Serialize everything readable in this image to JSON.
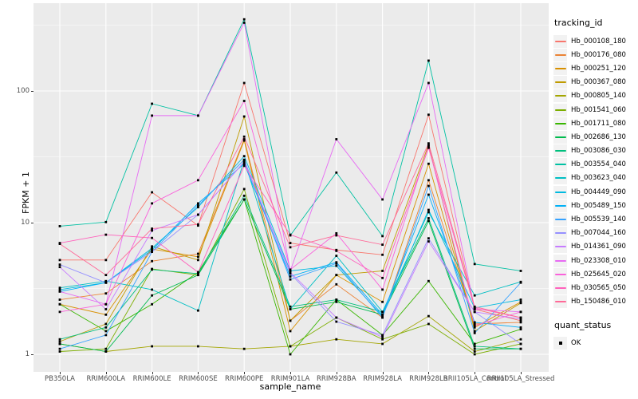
{
  "chart_data": {
    "type": "line",
    "title": "",
    "xlabel": "sample_name",
    "ylabel": "FPKM + 1",
    "x_categories": [
      "PB350LA",
      "RRIM600LA",
      "RRIM600LE",
      "RRIM600SE",
      "RRIM600PE",
      "RRIM901LA",
      "RRIM928BA",
      "RRIM928LA",
      "RRIM928LB",
      "RRII105LA_Control",
      "RRII105LA_Stressed"
    ],
    "y_scale": "log10",
    "y_ticks": [
      1,
      10,
      100
    ],
    "y_minor_gridlines": [
      3.162,
      31.623,
      316.228
    ],
    "ylim": [
      0.75,
      460
    ],
    "grid": "on",
    "legend_position": "right",
    "legend_title": "tracking_id",
    "point_legend": {
      "title": "quant_status",
      "label": "OK"
    },
    "point_shape": "filled-black-square",
    "series": [
      {
        "name": "Hb_000108_180",
        "color": "#F8766D",
        "values": [
          5.2,
          5.2,
          17,
          9.5,
          115,
          7.0,
          6.2,
          5.7,
          66,
          2.2,
          1.8
        ]
      },
      {
        "name": "Hb_000176_080",
        "color": "#EB8335",
        "values": [
          2.6,
          2.9,
          5.1,
          5.8,
          43,
          1.8,
          3.4,
          1.9,
          21,
          1.7,
          1.75
        ]
      },
      {
        "name": "Hb_000251_120",
        "color": "#D89000",
        "values": [
          2.4,
          2.0,
          6.3,
          5.5,
          42,
          1.5,
          4.0,
          2.5,
          28,
          1.6,
          2.5
        ]
      },
      {
        "name": "Hb_000367_080",
        "color": "#C09B00",
        "values": [
          1.25,
          1.7,
          6.6,
          5.2,
          64,
          1.8,
          4.0,
          4.3,
          39,
          1.5,
          2.45
        ]
      },
      {
        "name": "Hb_000805_140",
        "color": "#A3A500",
        "values": [
          1.2,
          1.05,
          1.15,
          1.15,
          1.1,
          1.15,
          1.3,
          1.2,
          1.95,
          1.05,
          1.3
        ]
      },
      {
        "name": "Hb_001541_060",
        "color": "#7CAE00",
        "values": [
          1.05,
          1.1,
          4.45,
          4.0,
          18,
          1.15,
          1.9,
          1.3,
          1.7,
          1.0,
          1.2
        ]
      },
      {
        "name": "Hb_001711_080",
        "color": "#39B600",
        "values": [
          2.4,
          1.5,
          2.4,
          4.2,
          15,
          1.0,
          2.6,
          1.4,
          3.6,
          1.2,
          1.55
        ]
      },
      {
        "name": "Hb_002686_130",
        "color": "#00BB4E",
        "values": [
          1.2,
          1.05,
          2.8,
          4.0,
          15,
          2.2,
          2.5,
          2.0,
          10.3,
          1.1,
          1.1
        ]
      },
      {
        "name": "Hb_003086_030",
        "color": "#00BF7D",
        "values": [
          1.3,
          1.6,
          4.4,
          4.1,
          16,
          2.3,
          2.6,
          2.1,
          10.8,
          1.15,
          1.1
        ]
      },
      {
        "name": "Hb_003554_040",
        "color": "#00C1A3",
        "values": [
          9.4,
          10.1,
          80,
          65,
          350,
          8.0,
          24,
          7.9,
          170,
          4.85,
          4.3
        ]
      },
      {
        "name": "Hb_003623_040",
        "color": "#00BFC4",
        "values": [
          3.2,
          3.6,
          3.1,
          2.15,
          30,
          2.2,
          5.6,
          2.1,
          12,
          2.8,
          3.55
        ]
      },
      {
        "name": "Hb_004449_090",
        "color": "#00BAE0",
        "values": [
          3.1,
          3.5,
          6.4,
          13.1,
          32,
          4.3,
          4.7,
          1.95,
          12.5,
          2.25,
          2.6
        ]
      },
      {
        "name": "Hb_005489_150",
        "color": "#00B0F6",
        "values": [
          3.0,
          3.5,
          6.2,
          14,
          28,
          3.9,
          5.0,
          2.0,
          16.3,
          1.75,
          1.6
        ]
      },
      {
        "name": "Hb_005539_140",
        "color": "#35A2FF",
        "values": [
          1.1,
          1.4,
          6.0,
          13.5,
          30,
          3.7,
          4.9,
          1.9,
          19,
          1.45,
          3.5
        ]
      },
      {
        "name": "Hb_007044_160",
        "color": "#9590FF",
        "values": [
          4.8,
          3.5,
          6.0,
          11.5,
          29,
          4.1,
          1.77,
          1.4,
          7.6,
          2.1,
          1.2
        ]
      },
      {
        "name": "Hb_014361_090",
        "color": "#C77CFF",
        "values": [
          4.6,
          2.2,
          8.7,
          11.5,
          29,
          4.2,
          1.9,
          1.35,
          7.2,
          2.1,
          1.85
        ]
      },
      {
        "name": "Hb_023308_010",
        "color": "#E76BF3",
        "values": [
          3.0,
          2.4,
          65,
          65,
          330,
          4.3,
          43,
          15,
          115,
          2.2,
          2.1
        ]
      },
      {
        "name": "Hb_025645_020",
        "color": "#FA62DB",
        "values": [
          2.1,
          2.4,
          14,
          21,
          84,
          4.4,
          8.3,
          3.1,
          38,
          1.65,
          2.1
        ]
      },
      {
        "name": "Hb_030565_050",
        "color": "#FF62BC",
        "values": [
          7.0,
          8.1,
          7.65,
          4.2,
          27,
          8.1,
          6.1,
          3.8,
          37,
          2.25,
          1.9
        ]
      },
      {
        "name": "Hb_150486_010",
        "color": "#FF6A98",
        "values": [
          6.9,
          4.0,
          9.0,
          9.7,
          45,
          6.5,
          8.0,
          6.8,
          40,
          2.3,
          1.9
        ]
      }
    ]
  },
  "style": {
    "panel_background": "#EBEBEB",
    "gridline_color": "#FFFFFF",
    "tick_label_color": "#4D4D4D",
    "point_color": "#000000",
    "legend_key_background": "#F2F2F2"
  }
}
